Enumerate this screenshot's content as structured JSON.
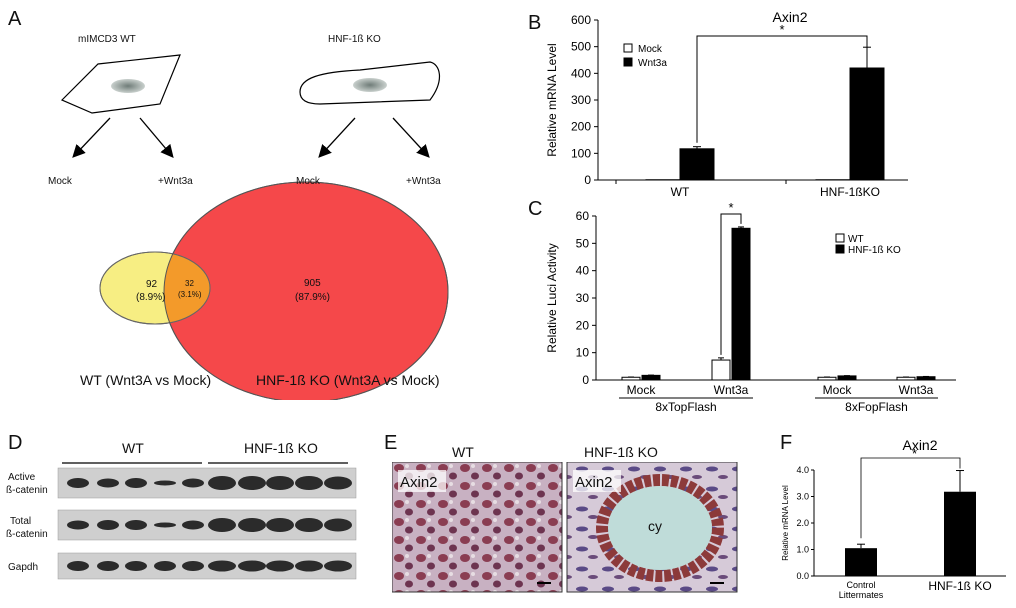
{
  "panels": {
    "A": {
      "letter": "A",
      "cell_left_label": "mIMCD3 WT",
      "cell_right_label": "HNF-1ß KO",
      "arrow_labels": [
        "Mock",
        "+Wnt3a",
        "Mock",
        "+Wnt3a"
      ],
      "venn": {
        "left_count": "92",
        "left_pct": "(8.9%)",
        "overlap_count": "32",
        "overlap_pct": "(3.1%)",
        "right_count": "905",
        "right_pct": "(87.9%)",
        "left_caption": "WT (Wnt3A vs Mock)",
        "right_caption": "HNF-1ß KO (Wnt3A vs Mock)",
        "colors": {
          "left": "#f7ee83",
          "right": "#f5484a",
          "overlap": "#f39a2a"
        }
      }
    },
    "B": {
      "letter": "B",
      "star": "*",
      "chart_data": {
        "type": "bar",
        "title": "Axin2",
        "ylabel": "Relative mRNA Level",
        "categories": [
          "WT",
          "HNF-1ßKO"
        ],
        "series": [
          {
            "name": "Mock",
            "values": [
              1,
              1
            ],
            "errors": [
              0,
              0
            ],
            "color": "#ffffff"
          },
          {
            "name": "Wnt3a",
            "values": [
              117,
              420
            ],
            "errors": [
              8,
              78
            ],
            "color": "#000000"
          }
        ],
        "ylim": [
          0,
          600
        ],
        "yticks": [
          "0",
          "100",
          "200",
          "300",
          "400",
          "500",
          "600"
        ]
      }
    },
    "C": {
      "letter": "C",
      "star": "*",
      "chart_data": {
        "type": "bar",
        "ylabel": "Relative Luci Activity",
        "categories": [
          "Mock",
          "Wnt3a",
          "Mock",
          "Wnt3a"
        ],
        "groups": [
          "8xTopFlash",
          "8xFopFlash"
        ],
        "series": [
          {
            "name": "WT",
            "values": [
              1.0,
              7.3,
              1.0,
              1.0
            ],
            "errors": [
              0.1,
              0.8,
              0.1,
              0.1
            ],
            "color": "#ffffff"
          },
          {
            "name": "HNF-1ß KO",
            "values": [
              1.7,
              55.5,
              1.5,
              1.2
            ],
            "errors": [
              0.1,
              0.5,
              0.1,
              0.1
            ],
            "color": "#000000"
          }
        ],
        "ylim": [
          0,
          60
        ],
        "yticks": [
          "0",
          "10",
          "20",
          "30",
          "40",
          "50",
          "60"
        ]
      }
    },
    "D": {
      "letter": "D",
      "group_labels": [
        "WT",
        "HNF-1ß KO"
      ],
      "row_labels": [
        [
          "Active",
          "ß-catenin"
        ],
        [
          "Total",
          "ß-catenin"
        ],
        [
          "Gapdh"
        ]
      ]
    },
    "E": {
      "letter": "E",
      "image_titles": [
        "WT",
        "HNF-1ß KO"
      ],
      "stain_label": "Axin2",
      "cyst_label": "cy"
    },
    "F": {
      "letter": "F",
      "star": "*",
      "chart_data": {
        "type": "bar",
        "title": "Axin2",
        "ylabel": "Relative mRNA Level",
        "categories": [
          "Control\nLittermates",
          "HNF-1ß KO"
        ],
        "category_lines": [
          [
            "Control",
            "Littermates"
          ],
          [
            "HNF-1ß KO"
          ]
        ],
        "values": [
          1.05,
          3.18
        ],
        "errors": [
          0.15,
          0.8
        ],
        "ylim": [
          0,
          4
        ],
        "yticks": [
          "0.0",
          "1.0",
          "2.0",
          "3.0",
          "4.0"
        ]
      }
    }
  }
}
